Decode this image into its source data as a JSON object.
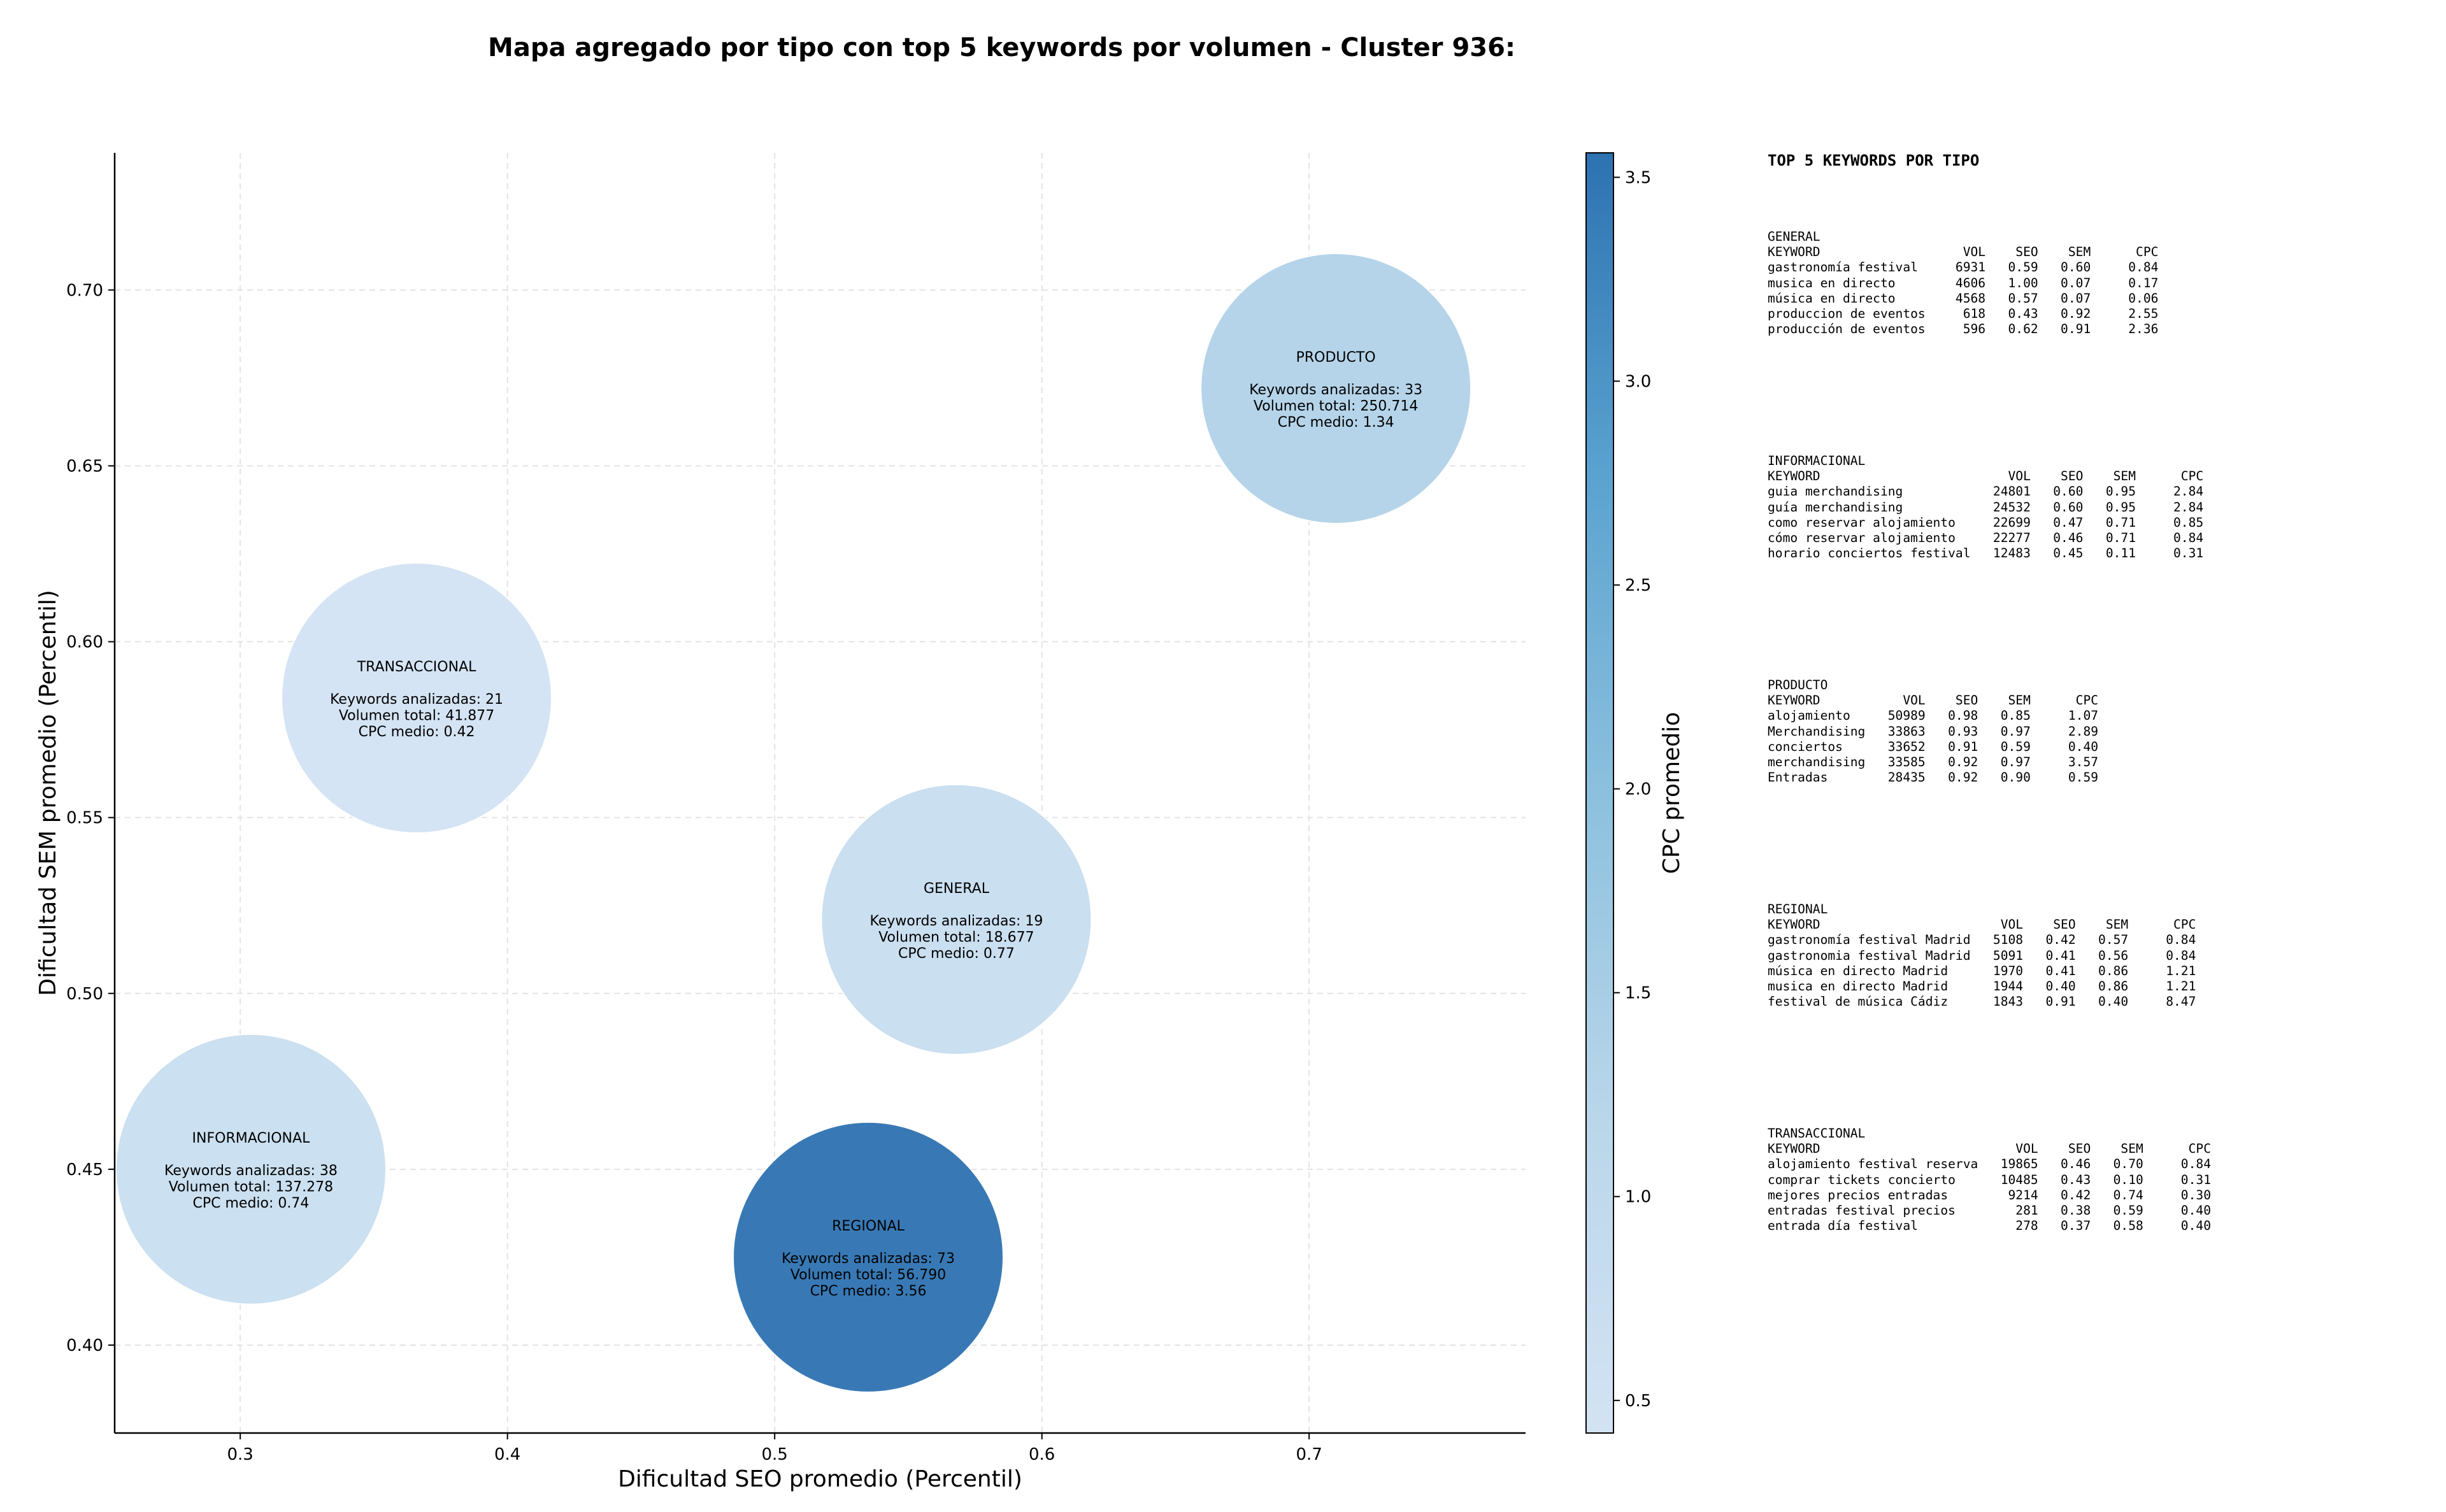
{
  "chart_data": {
    "type": "scatter",
    "title": "Mapa agregado por tipo con top 5 keywords por volumen - Cluster 936:",
    "xlabel": "Dificultad SEO promedio (Percentil)",
    "ylabel": "Dificultad SEM promedio (Percentil)",
    "xlim": [
      0.253,
      0.781
    ],
    "ylim": [
      0.375,
      0.739
    ],
    "x_ticks": [
      0.3,
      0.4,
      0.5,
      0.6,
      0.7
    ],
    "x_tick_labels": [
      "0.3",
      "0.4",
      "0.5",
      "0.6",
      "0.7"
    ],
    "y_ticks": [
      0.4,
      0.45,
      0.5,
      0.55,
      0.6,
      0.65,
      0.7
    ],
    "y_tick_labels": [
      "0.40",
      "0.45",
      "0.50",
      "0.55",
      "0.60",
      "0.65",
      "0.70"
    ],
    "grid": true,
    "colorbar": {
      "label": "CPC promedio",
      "min": 0.42,
      "max": 3.56,
      "ticks": [
        0.5,
        1.0,
        1.5,
        2.0,
        2.5,
        3.0,
        3.5
      ],
      "tick_labels": [
        "0.5",
        "1.0",
        "1.5",
        "2.0",
        "2.5",
        "3.0",
        "3.5"
      ]
    },
    "points": [
      {
        "name": "PRODUCTO",
        "x": 0.71,
        "y": 0.672,
        "cpc": 1.34,
        "lines": [
          "PRODUCTO",
          "",
          "Keywords analizadas: 33",
          "Volumen total: 250.714",
          "CPC medio: 1.34"
        ]
      },
      {
        "name": "TRANSACCIONAL",
        "x": 0.366,
        "y": 0.584,
        "cpc": 0.42,
        "lines": [
          "TRANSACCIONAL",
          "",
          "Keywords analizadas: 21",
          "Volumen total: 41.877",
          "CPC medio: 0.42"
        ]
      },
      {
        "name": "GENERAL",
        "x": 0.568,
        "y": 0.521,
        "cpc": 0.77,
        "lines": [
          "GENERAL",
          "",
          "Keywords analizadas: 19",
          "Volumen total: 18.677",
          "CPC medio: 0.77"
        ]
      },
      {
        "name": "INFORMACIONAL",
        "x": 0.304,
        "y": 0.45,
        "cpc": 0.74,
        "lines": [
          "INFORMACIONAL",
          "",
          "Keywords analizadas: 38",
          "Volumen total: 137.278",
          "CPC medio: 0.74"
        ]
      },
      {
        "name": "REGIONAL",
        "x": 0.535,
        "y": 0.425,
        "cpc": 3.56,
        "lines": [
          "REGIONAL",
          "",
          "Keywords analizadas: 73",
          "Volumen total: 56.790",
          "CPC medio: 3.56"
        ]
      }
    ]
  },
  "keyword_panel": {
    "title": "TOP 5 KEYWORDS POR TIPO",
    "tables": [
      {
        "label": "GENERAL",
        "text": "GENERAL\nKEYWORD                   VOL    SEO    SEM      CPC\ngastronomía festival     6931   0.59   0.60     0.84\nmusica en directo        4606   1.00   0.07     0.17\nmúsica en directo        4568   0.57   0.07     0.06\nproduccion de eventos     618   0.43   0.92     2.55\nproducción de eventos     596   0.62   0.91     2.36"
      },
      {
        "label": "INFORMACIONAL",
        "text": "INFORMACIONAL\nKEYWORD                         VOL    SEO    SEM      CPC\nguia merchandising            24801   0.60   0.95     2.84\nguía merchandising            24532   0.60   0.95     2.84\ncomo reservar alojamiento     22699   0.47   0.71     0.85\ncómo reservar alojamiento     22277   0.46   0.71     0.84\nhorario conciertos festival   12483   0.45   0.11     0.31"
      },
      {
        "label": "PRODUCTO",
        "text": "PRODUCTO\nKEYWORD           VOL    SEO    SEM      CPC\nalojamiento     50989   0.98   0.85     1.07\nMerchandising   33863   0.93   0.97     2.89\nconciertos      33652   0.91   0.59     0.40\nmerchandising   33585   0.92   0.97     3.57\nEntradas        28435   0.92   0.90     0.59"
      },
      {
        "label": "REGIONAL",
        "text": "REGIONAL\nKEYWORD                        VOL    SEO    SEM      CPC\ngastronomía festival Madrid   5108   0.42   0.57     0.84\ngastronomia festival Madrid   5091   0.41   0.56     0.84\nmúsica en directo Madrid      1970   0.41   0.86     1.21\nmusica en directo Madrid      1944   0.40   0.86     1.21\nfestival de música Cádiz      1843   0.91   0.40     8.47"
      },
      {
        "label": "TRANSACCIONAL",
        "text": "TRANSACCIONAL\nKEYWORD                          VOL    SEO    SEM      CPC\nalojamiento festival reserva   19865   0.46   0.70     0.84\ncomprar tickets concierto      10485   0.43   0.10     0.31\nmejores precios entradas        9214   0.42   0.74     0.30\nentradas festival precios        281   0.38   0.59     0.40\nentrada día festival             278   0.37   0.58     0.40"
      }
    ]
  }
}
